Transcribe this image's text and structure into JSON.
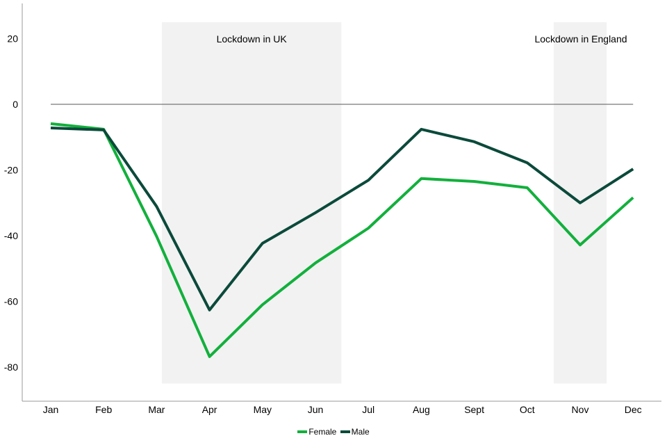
{
  "chart_data": {
    "type": "line",
    "categories": [
      "Jan",
      "Feb",
      "Mar",
      "Apr",
      "May",
      "Jun",
      "Jul",
      "Aug",
      "Sept",
      "Oct",
      "Nov",
      "Dec"
    ],
    "series": [
      {
        "name": "Female",
        "color": "#12b03c",
        "values": [
          -5.9,
          -7.6,
          -40.2,
          -76.8,
          -61.0,
          -48.3,
          -37.7,
          -22.6,
          -23.5,
          -25.4,
          -42.8,
          -28.4
        ]
      },
      {
        "name": "Male",
        "color": "#0b4a3a",
        "values": [
          -7.2,
          -7.8,
          -31.1,
          -62.6,
          -42.3,
          -33.0,
          -23.1,
          -7.6,
          -11.4,
          -17.8,
          -30.0,
          -19.7
        ]
      }
    ],
    "yticks": [
      20,
      0,
      -20,
      -40,
      -60,
      -80
    ],
    "ylim": [
      -90,
      30
    ],
    "grid": false,
    "legend_position": "bottom",
    "annotations": [
      {
        "label": "Lockdown in UK",
        "from": "Mar",
        "to": "Jun/Jul"
      },
      {
        "label": "Lockdown in England",
        "from": "Oct/Nov",
        "to": "Nov/Dec"
      }
    ],
    "shade_color": "#f2f2f2"
  }
}
